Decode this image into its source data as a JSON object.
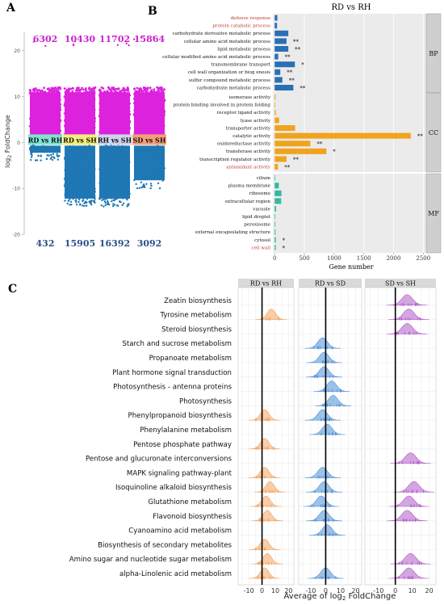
{
  "panel_labels": {
    "a": "A",
    "b": "B",
    "c": "C"
  },
  "colors": {
    "volcano_up": "#dd22dd",
    "volcano_down": "#1f77b4",
    "bp_bar": "#2b6fb5",
    "cc_bar": "#f0a31c",
    "mf_bar": "#35b7a4",
    "rh_ridge": "#f4a460",
    "sd_ridge": "#4a90d9",
    "sh_ridge": "#b05cc8",
    "red_text": "#c0392b",
    "up_count": "#cc22cc",
    "down_count": "#2a4f8a"
  },
  "chart_data": [
    {
      "type": "scatter",
      "panel": "A",
      "ylabel": "log2 FoldChange",
      "ylabel_main": "log",
      "ylabel_sub": "2",
      "ylabel_tail": " FoldChange",
      "yticks": [
        20,
        10,
        0,
        -10,
        -20
      ],
      "ylim": [
        -20,
        24
      ],
      "groups": [
        {
          "label": "RD vs RH",
          "up_count": "6302",
          "down_count": "432",
          "label_bg": "#7fe3d0",
          "up_max": 12,
          "down_min": -4
        },
        {
          "label": "RD vs SH",
          "up_count": "10430",
          "down_count": "15905",
          "label_bg": "#f4ee7a",
          "up_max": 12,
          "down_min": -14
        },
        {
          "label": "RH vs SH",
          "up_count": "11702",
          "down_count": "16392",
          "label_bg": "#cdd3ec",
          "up_max": 12,
          "down_min": -14
        },
        {
          "label": "SD vs SH",
          "up_count": "15864",
          "down_count": "3092",
          "label_bg": "#f4a07a",
          "up_max": 12,
          "down_min": -10
        }
      ]
    },
    {
      "type": "bar",
      "panel": "B",
      "title": "RD vs RH",
      "xlabel": "Gene number",
      "xticks": [
        0,
        500,
        1000,
        1500,
        2000,
        2500
      ],
      "xlim": [
        -30,
        2550
      ],
      "sections": [
        {
          "name": "BP",
          "items": [
            {
              "label": "defense response",
              "value": 45,
              "sig": "",
              "red": true
            },
            {
              "label": "protein catabolic process",
              "value": 40,
              "sig": "",
              "red": true
            },
            {
              "label": "carbohydrate derivative metabolic process",
              "value": 230,
              "sig": "",
              "red": false
            },
            {
              "label": "cellular amino acid metabolic process",
              "value": 200,
              "sig": "**",
              "red": false
            },
            {
              "label": "lipid metabolic process",
              "value": 230,
              "sig": "**",
              "red": false
            },
            {
              "label": "cellular modified amino acid metabolic process",
              "value": 60,
              "sig": "**",
              "red": false
            },
            {
              "label": "transmembrane transport",
              "value": 340,
              "sig": "*",
              "red": false
            },
            {
              "label": "cell wall organization or biog enesis",
              "value": 95,
              "sig": "**",
              "red": false
            },
            {
              "label": "sulfur compound metabolic process",
              "value": 130,
              "sig": "**",
              "red": false
            },
            {
              "label": "carbohydrate metabolic process",
              "value": 315,
              "sig": "**",
              "red": false
            }
          ]
        },
        {
          "name": "CC",
          "items": [
            {
              "label": "isomerase activity",
              "value": 15,
              "sig": "",
              "red": false
            },
            {
              "label": "protein binding involved in protein folding",
              "value": 10,
              "sig": "",
              "red": false
            },
            {
              "label": "receptor ligand activity",
              "value": 20,
              "sig": "",
              "red": false
            },
            {
              "label": "lyase activity",
              "value": 75,
              "sig": "",
              "red": false
            },
            {
              "label": "transporter activity",
              "value": 345,
              "sig": "",
              "red": false
            },
            {
              "label": "catalytic activity",
              "value": 2290,
              "sig": "**",
              "red": false
            },
            {
              "label": "oxidoreductase activity",
              "value": 600,
              "sig": "**",
              "red": false
            },
            {
              "label": "transferase activity",
              "value": 870,
              "sig": "*",
              "red": false
            },
            {
              "label": "transcription regulator activity",
              "value": 200,
              "sig": "**",
              "red": false
            },
            {
              "label": "antioxidant activity",
              "value": 55,
              "sig": "**",
              "red": true
            }
          ]
        },
        {
          "name": "MF",
          "items": [
            {
              "label": "cilium",
              "value": 10,
              "sig": "",
              "red": false
            },
            {
              "label": "plasma membrane",
              "value": 70,
              "sig": "",
              "red": false
            },
            {
              "label": "ribosome",
              "value": 115,
              "sig": "",
              "red": false
            },
            {
              "label": "extracellular region",
              "value": 110,
              "sig": "",
              "red": false
            },
            {
              "label": "vacuole",
              "value": 25,
              "sig": "",
              "red": false
            },
            {
              "label": "lipid droplet",
              "value": 8,
              "sig": "",
              "red": false
            },
            {
              "label": "peroxisome",
              "value": 12,
              "sig": "",
              "red": false
            },
            {
              "label": "external encapsulating structure",
              "value": 15,
              "sig": "",
              "red": false
            },
            {
              "label": "cytosol",
              "value": 20,
              "sig": "*",
              "red": false
            },
            {
              "label": "cell wall",
              "value": 18,
              "sig": "*",
              "red": true
            }
          ]
        }
      ]
    },
    {
      "type": "area",
      "panel": "C",
      "xlabel": "Average of log2 FoldChange",
      "xlabel_main": "Average of log",
      "xlabel_sub": "2",
      "xlabel_tail": " FoldChange",
      "xticks": [
        -10,
        0,
        10,
        20
      ],
      "xlim": [
        -18,
        24
      ],
      "facets": [
        "RD vs RH",
        "RD vs SD",
        "SD vs SH"
      ],
      "pathways": [
        {
          "name": "Zeatin biosynthesis",
          "peaks": [
            null,
            null,
            7
          ]
        },
        {
          "name": "Tyrosine metabolism",
          "peaks": [
            7,
            null,
            8
          ]
        },
        {
          "name": "Steroid biosynthesis",
          "peaks": [
            null,
            null,
            7
          ]
        },
        {
          "name": "Starch and sucrose metabolism",
          "peaks": [
            null,
            -2,
            null
          ]
        },
        {
          "name": "Propanoate metabolism",
          "peaks": [
            null,
            -1,
            null
          ]
        },
        {
          "name": "Plant hormone signal transduction",
          "peaks": [
            null,
            -1,
            null
          ]
        },
        {
          "name": "Photosynthesis - antenna proteins",
          "peaks": [
            null,
            4,
            null
          ]
        },
        {
          "name": "Photosynthesis",
          "peaks": [
            null,
            5,
            null
          ]
        },
        {
          "name": "Phenylpropanoid biosynthesis",
          "peaks": [
            2,
            -2,
            null
          ]
        },
        {
          "name": "Phenylalanine metabolism",
          "peaks": [
            null,
            1,
            null
          ]
        },
        {
          "name": "Pentose phosphate pathway",
          "peaks": [
            2,
            null,
            null
          ]
        },
        {
          "name": "Pentose and glucuronate interconversions",
          "peaks": [
            null,
            null,
            9
          ]
        },
        {
          "name": "MAPK signaling pathway-plant",
          "peaks": [
            2,
            -2,
            null
          ]
        },
        {
          "name": "Isoquinoline alkaloid biosynthesis",
          "peaks": [
            6,
            -1,
            11
          ]
        },
        {
          "name": "Glutathione metabolism",
          "peaks": [
            3,
            -3,
            8
          ]
        },
        {
          "name": "Flavonoid biosynthesis",
          "peaks": [
            4,
            -1,
            7
          ]
        },
        {
          "name": "Cyanoamino acid metabolism",
          "peaks": [
            null,
            1,
            null
          ]
        },
        {
          "name": "Biosynthesis of secondary metabolites",
          "peaks": [
            2,
            null,
            null
          ]
        },
        {
          "name": "Amino sugar and nucleotide sugar metabolism",
          "peaks": [
            4,
            null,
            9
          ]
        },
        {
          "name": "alpha-Linolenic acid metabolism",
          "peaks": [
            2,
            0,
            8
          ]
        }
      ]
    }
  ]
}
